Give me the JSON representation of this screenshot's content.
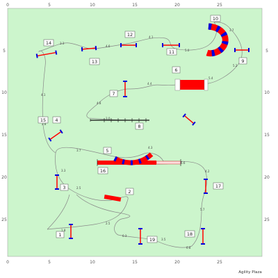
{
  "axes": {
    "x_ticks": [
      "0",
      "5",
      "10",
      "15",
      "20",
      "25"
    ],
    "y_ticks": [
      "5",
      "10",
      "15",
      "20",
      "25"
    ]
  },
  "obstacle_labels": [
    "1",
    "2",
    "3",
    "4",
    "5",
    "6",
    "7",
    "8",
    "9",
    "10",
    "11",
    "12",
    "13",
    "14",
    "15",
    "16",
    "17",
    "18",
    "19"
  ],
  "distance_labels": [
    "1.8",
    "2.5",
    "2.5",
    "3.3",
    "3.7",
    "2.8",
    "4.1",
    "3.3",
    "4.6",
    "4.1",
    "5.0",
    "3.7",
    "5.2",
    "5.4",
    "4.4",
    "4.8",
    "3.0",
    "4.3",
    "6.6",
    "4.2",
    "5.7",
    "6.8",
    "3.5",
    "6.3"
  ],
  "brand": "Agility Plaza",
  "colors": {
    "field": "#ccf5cc",
    "jump_bar": "#ff0000",
    "jump_wing": "#0000dd",
    "tunnel": "#ff0000",
    "path": "#888888"
  }
}
